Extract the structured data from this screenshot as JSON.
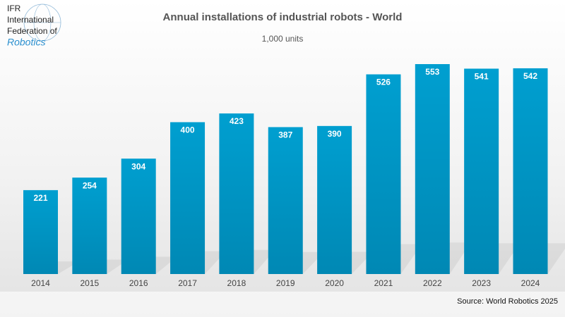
{
  "logo": {
    "lines": [
      "IFR",
      "International",
      "Federation of"
    ],
    "brand": "Robotics"
  },
  "chart_data": {
    "type": "bar",
    "title": "Annual installations of industrial robots - World",
    "subtitle": "1,000 units",
    "source": "Source: World Robotics 2025",
    "categories": [
      "2014",
      "2015",
      "2016",
      "2017",
      "2018",
      "2019",
      "2020",
      "2021",
      "2022",
      "2023",
      "2024"
    ],
    "values": [
      221,
      254,
      304,
      400,
      423,
      387,
      390,
      526,
      553,
      541,
      542
    ],
    "color": "#0098c8"
  }
}
